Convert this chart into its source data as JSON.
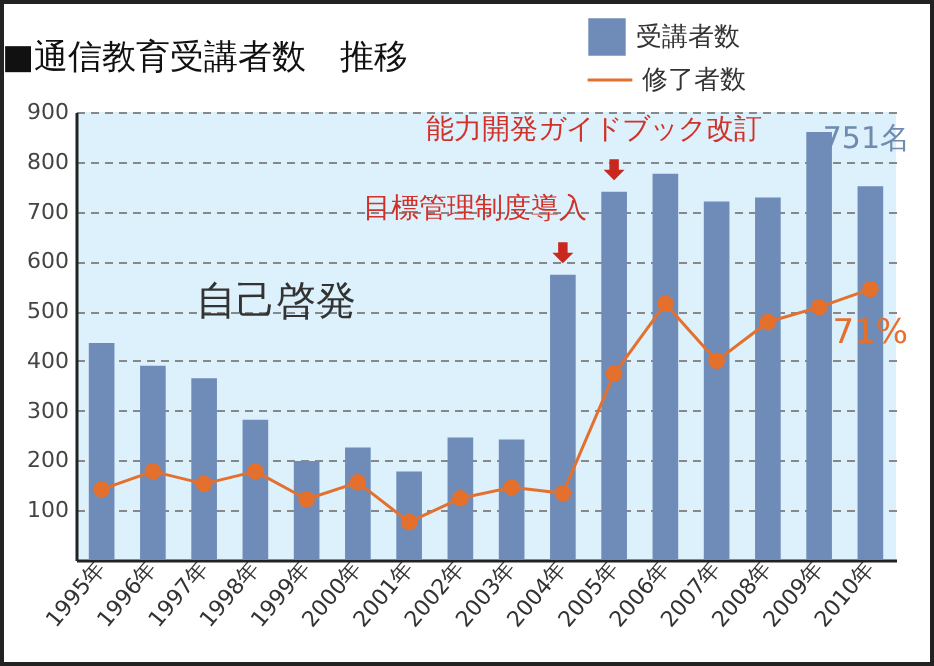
{
  "chart_data": {
    "type": "bar",
    "title": "■通信教育受講者数　推移",
    "categories": [
      "1995年",
      "1996年",
      "1997年",
      "1998年",
      "1999年",
      "2000年",
      "2001年",
      "2002年",
      "2003年",
      "2004年",
      "2005年",
      "2006年",
      "2007年",
      "2008年",
      "2009年",
      "2010年"
    ],
    "series": [
      {
        "name": "受講者数",
        "color": "#6f8bb8",
        "values": [
          436,
          390,
          365,
          282,
          199,
          226,
          178,
          246,
          242,
          573,
          740,
          776,
          720,
          728,
          860,
          751
        ]
      },
      {
        "name": "修了者数",
        "type": "line",
        "color": "#e4702e",
        "values": [
          142,
          178,
          153,
          178,
          122,
          156,
          76,
          124,
          146,
          134,
          374,
          515,
          400,
          478,
          508,
          544
        ]
      }
    ],
    "ylim": [
      0,
      900
    ],
    "yticks": [
      100,
      200,
      300,
      400,
      500,
      600,
      700,
      800,
      900
    ],
    "grid": "y",
    "legend": "top right",
    "marker": "circle",
    "line_style": "solid",
    "annotations": [
      "自己啓発",
      {
        "text": "目標管理制度導入",
        "x": "2004年",
        "y": 573
      },
      {
        "text": "能力開発ガイドブック改訂",
        "x": "2005年",
        "y": 740
      },
      {
        "text": "751名",
        "x": "2010年",
        "y": 751
      },
      {
        "text": "71%",
        "x": "2010年",
        "y": 544
      }
    ]
  }
}
